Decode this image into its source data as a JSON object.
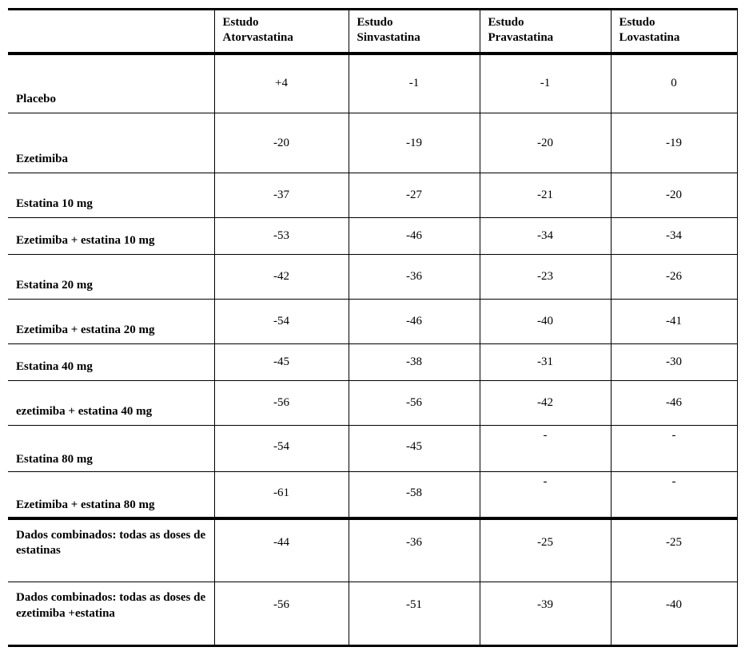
{
  "columns": [
    "",
    "Estudo Atorvastatina",
    "Estudo Sinvastatina",
    "Estudo Pravastatina",
    "Estudo Lovastatina"
  ],
  "rows": [
    {
      "label": "Placebo",
      "vals": [
        "+4",
        "-1",
        "-1",
        "0"
      ],
      "cls": "h-tall"
    },
    {
      "label": "Ezetimiba",
      "vals": [
        "-20",
        "-19",
        "-20",
        "-19"
      ],
      "cls": "h-tall"
    },
    {
      "label": "Estatina 10 mg",
      "vals": [
        "-37",
        "-27",
        "-21",
        "-20"
      ],
      "cls": "h-med"
    },
    {
      "label": "Ezetimiba + estatina 10 mg",
      "vals": [
        "-53",
        "-46",
        "-34",
        "-34"
      ],
      "cls": "h-sm"
    },
    {
      "label": "Estatina 20 mg",
      "vals": [
        "-42",
        "-36",
        "-23",
        "-26"
      ],
      "cls": "h-med"
    },
    {
      "label": "Ezetimiba + estatina 20 mg",
      "vals": [
        "-54",
        "-46",
        "-40",
        "-41"
      ],
      "cls": "h-med"
    },
    {
      "label": "Estatina 40 mg",
      "vals": [
        "-45",
        "-38",
        "-31",
        "-30"
      ],
      "cls": "h-sm"
    },
    {
      "label": "ezetimiba + estatina 40 mg",
      "vals": [
        "-56",
        "-56",
        "-42",
        "-46"
      ],
      "cls": "h-med"
    }
  ],
  "dashRows": [
    {
      "label": "Estatina 80 mg",
      "vals": [
        "-54",
        "-45",
        "-",
        "-"
      ]
    },
    {
      "label": "Ezetimiba + estatina 80 mg",
      "vals": [
        "-61",
        "-58",
        "-",
        "-"
      ]
    }
  ],
  "pooled": [
    {
      "label": "Dados combinados: todas as doses de estatinas",
      "vals": [
        "-44",
        "-36",
        "-25",
        "-25"
      ]
    },
    {
      "label": "Dados combinados: todas as doses de ezetimiba +estatina",
      "vals": [
        "-56",
        "-51",
        "-39",
        "-40"
      ]
    }
  ]
}
